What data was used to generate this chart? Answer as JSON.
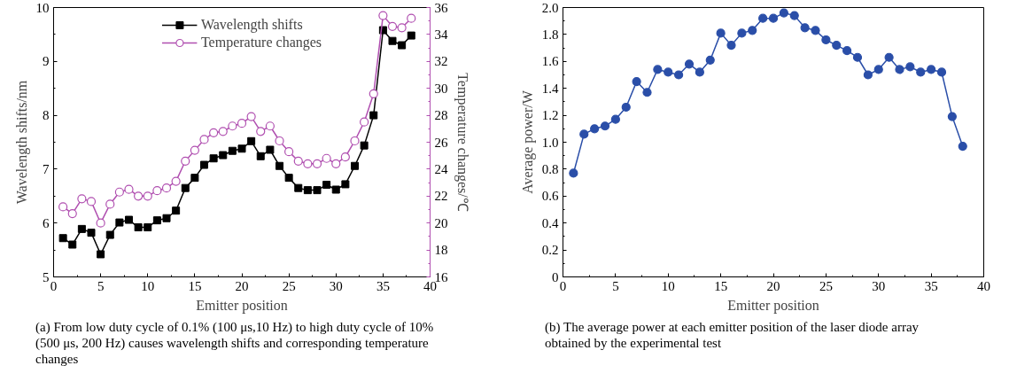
{
  "chart_data": [
    {
      "type": "line",
      "xlabel": "Emitter position",
      "ylabel": "Wavelength shifts/nm",
      "y2label": "Temperature changes/℃",
      "x": [
        1,
        2,
        3,
        4,
        5,
        6,
        7,
        8,
        9,
        10,
        11,
        12,
        13,
        14,
        15,
        16,
        17,
        18,
        19,
        20,
        21,
        22,
        23,
        24,
        25,
        26,
        27,
        28,
        29,
        30,
        31,
        32,
        33,
        34,
        35,
        36,
        37,
        38
      ],
      "series": [
        {
          "name": "Wavelength shifts",
          "color": "#000000",
          "marker": "square",
          "values": [
            5.72,
            5.6,
            5.89,
            5.82,
            5.42,
            5.78,
            6.01,
            6.06,
            5.92,
            5.92,
            6.05,
            6.09,
            6.23,
            6.65,
            6.84,
            7.08,
            7.2,
            7.26,
            7.34,
            7.38,
            7.52,
            7.24,
            7.36,
            7.06,
            6.84,
            6.65,
            6.61,
            6.61,
            6.71,
            6.62,
            6.72,
            7.06,
            7.44,
            8.0,
            9.58,
            9.38,
            9.3,
            9.48
          ]
        },
        {
          "name": "Temperature changes",
          "color": "#b04fb0",
          "marker": "circle",
          "axis": "y2",
          "values": [
            21.2,
            20.7,
            21.8,
            21.6,
            20.0,
            21.4,
            22.3,
            22.5,
            22.0,
            22.0,
            22.4,
            22.6,
            23.1,
            24.6,
            25.4,
            26.2,
            26.7,
            26.8,
            27.2,
            27.4,
            27.9,
            26.8,
            27.2,
            26.1,
            25.3,
            24.6,
            24.4,
            24.4,
            24.8,
            24.4,
            24.9,
            26.1,
            27.5,
            29.6,
            35.4,
            34.6,
            34.5,
            35.2
          ]
        }
      ],
      "xlim": [
        0,
        40
      ],
      "xticks": [
        0,
        5,
        10,
        15,
        20,
        25,
        30,
        35,
        40
      ],
      "ylim": [
        5,
        10
      ],
      "yticks": [
        5,
        6,
        7,
        8,
        9,
        10
      ],
      "y2lim": [
        16,
        36
      ],
      "y2ticks": [
        16,
        18,
        20,
        22,
        24,
        26,
        28,
        30,
        32,
        34,
        36
      ],
      "legend": "top",
      "grid": false,
      "line_style": "solid",
      "annotations": [
        "(a) From low duty cycle of 0.1% (100 μs,10 Hz) to high duty cycle of 10% (500 μs, 200 Hz) causes wavelength shifts and corresponding temperature changes"
      ]
    },
    {
      "type": "line",
      "xlabel": "Emitter position",
      "ylabel": "Average power/W",
      "x": [
        1,
        2,
        3,
        4,
        5,
        6,
        7,
        8,
        9,
        10,
        11,
        12,
        13,
        14,
        15,
        16,
        17,
        18,
        19,
        20,
        21,
        22,
        23,
        24,
        25,
        26,
        27,
        28,
        29,
        30,
        31,
        32,
        33,
        34,
        35,
        36,
        37,
        38
      ],
      "series": [
        {
          "color": "#2a4ea8",
          "marker": "circle",
          "values": [
            0.77,
            1.06,
            1.1,
            1.12,
            1.17,
            1.26,
            1.45,
            1.37,
            1.54,
            1.52,
            1.5,
            1.58,
            1.52,
            1.61,
            1.81,
            1.72,
            1.81,
            1.83,
            1.92,
            1.92,
            1.96,
            1.94,
            1.85,
            1.83,
            1.76,
            1.72,
            1.68,
            1.63,
            1.5,
            1.54,
            1.63,
            1.54,
            1.56,
            1.52,
            1.54,
            1.52,
            1.19,
            0.97
          ]
        }
      ],
      "xlim": [
        0,
        40
      ],
      "xticks": [
        0,
        5,
        10,
        15,
        20,
        25,
        30,
        35,
        40
      ],
      "ylim": [
        0,
        2.0
      ],
      "yticks": [
        0,
        0.2,
        0.4,
        0.6,
        0.8,
        {
          "value": 1.0,
          "label": "1.0"
        },
        1.2,
        1.4,
        1.6,
        1.8,
        {
          "value": 2.0,
          "label": "2.0"
        }
      ],
      "legend": false,
      "grid": false,
      "line_style": "solid",
      "annotations": [
        "(b) The average power at each emitter position of the laser diode array obtained by the experimental test"
      ]
    }
  ]
}
